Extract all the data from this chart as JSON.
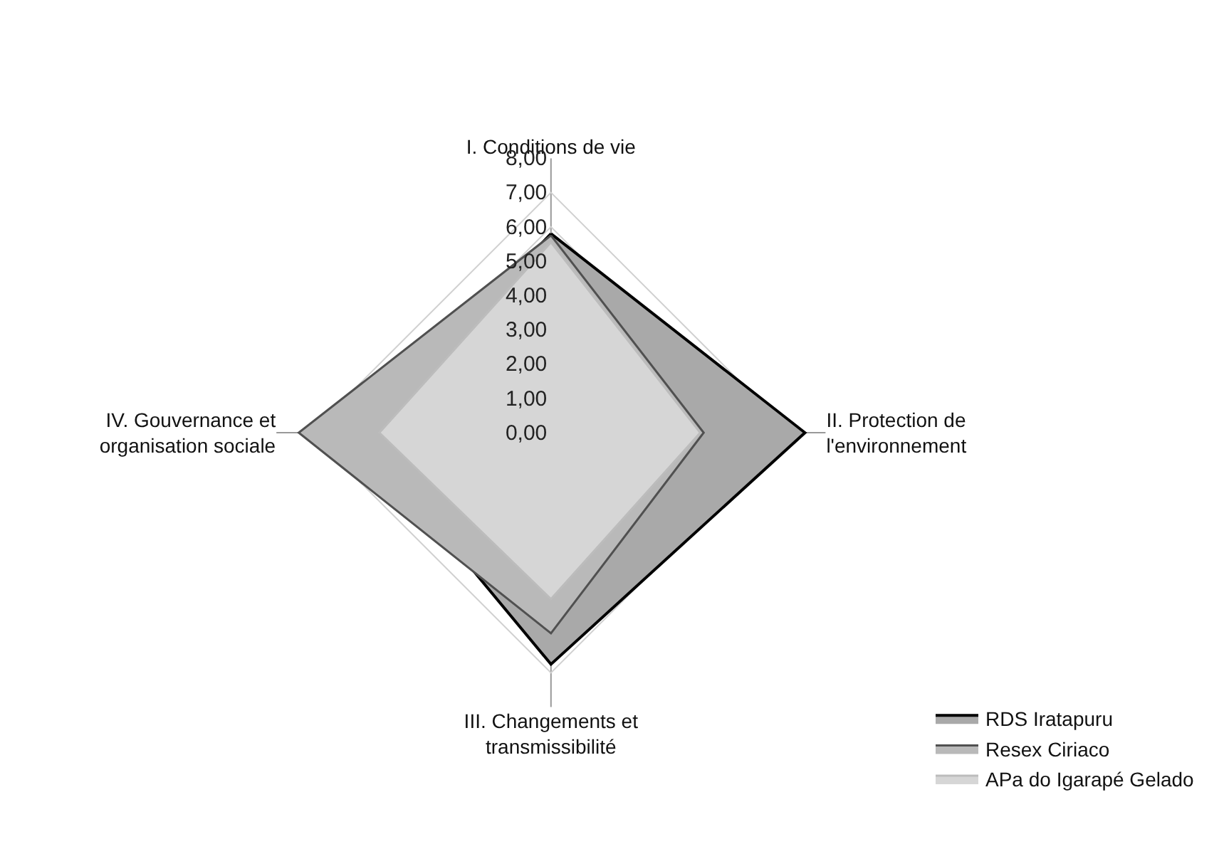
{
  "chart_data": {
    "type": "radar",
    "categories": [
      "I. Conditions de vie",
      "II. Protection de\nl'environnement",
      "III. Changements et\ntransmissibilité",
      "IV. Gouvernance et\norganisation sociale"
    ],
    "series": [
      {
        "name": "RDS Iratapuru",
        "color": "#a9a9a9",
        "values": [
          5.8,
          7.4,
          6.75,
          5.6
        ]
      },
      {
        "name": "Resex Ciriaco",
        "color": "#b9b9b9",
        "values": [
          5.75,
          4.45,
          5.85,
          7.35
        ]
      },
      {
        "name": "APa do Igarapé Gelado",
        "color": "#d6d6d6",
        "values": [
          5.55,
          4.35,
          4.85,
          5.0
        ]
      }
    ],
    "ylim": [
      0,
      8
    ],
    "yticks": [
      {
        "value": 0,
        "label": "0,00"
      },
      {
        "value": 1,
        "label": "1,00"
      },
      {
        "value": 2,
        "label": "2,00"
      },
      {
        "value": 3,
        "label": "3,00"
      },
      {
        "value": 4,
        "label": "4,00"
      },
      {
        "value": 5,
        "label": "5,00"
      },
      {
        "value": 6,
        "label": "6,00"
      },
      {
        "value": 7,
        "label": "7,00"
      },
      {
        "value": 8,
        "label": "8,00"
      }
    ],
    "grid": true,
    "legend": "bottom right"
  }
}
